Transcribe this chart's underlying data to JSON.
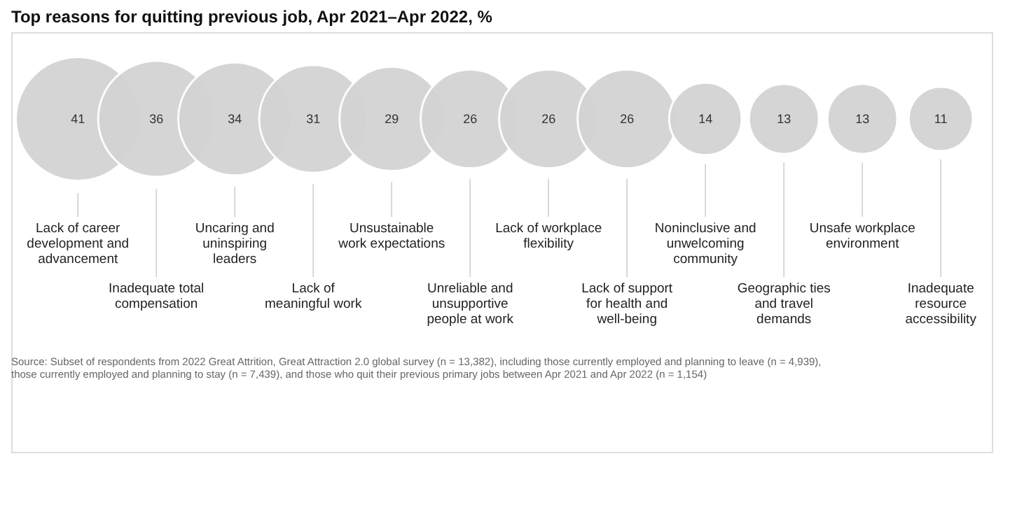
{
  "chart_data": {
    "type": "other",
    "title": "Top reasons for quitting previous job, Apr 2021–Apr 2022, %",
    "categories": [
      "Lack of career development and advancement",
      "Inadequate total compensation",
      "Uncaring and uninspiring leaders",
      "Lack of meaningful work",
      "Unsustainable work expectations",
      "Unreliable and unsupportive people at work",
      "Lack of workplace flexibility",
      "Lack of support for health and well-being",
      "Noninclusive and unwelcoming community",
      "Geographic ties and travel demands",
      "Unsafe workplace environment",
      "Inadequate resource accessibility"
    ],
    "values": [
      41,
      36,
      34,
      31,
      29,
      26,
      26,
      26,
      14,
      13,
      13,
      11
    ],
    "color": "#d3d3d3",
    "data_labels": true,
    "annotations": [
      "Source: Subset of respondents from 2022 Great Attrition, Great Attraction 2.0 global survey (n = 13,382), including those currently employed and planning to leave (n = 4,939), those currently employed and planning to stay (n = 7,439), and those who quit their previous primary jobs between Apr 2021 and Apr 2022 (n = 1,154)"
    ]
  }
}
